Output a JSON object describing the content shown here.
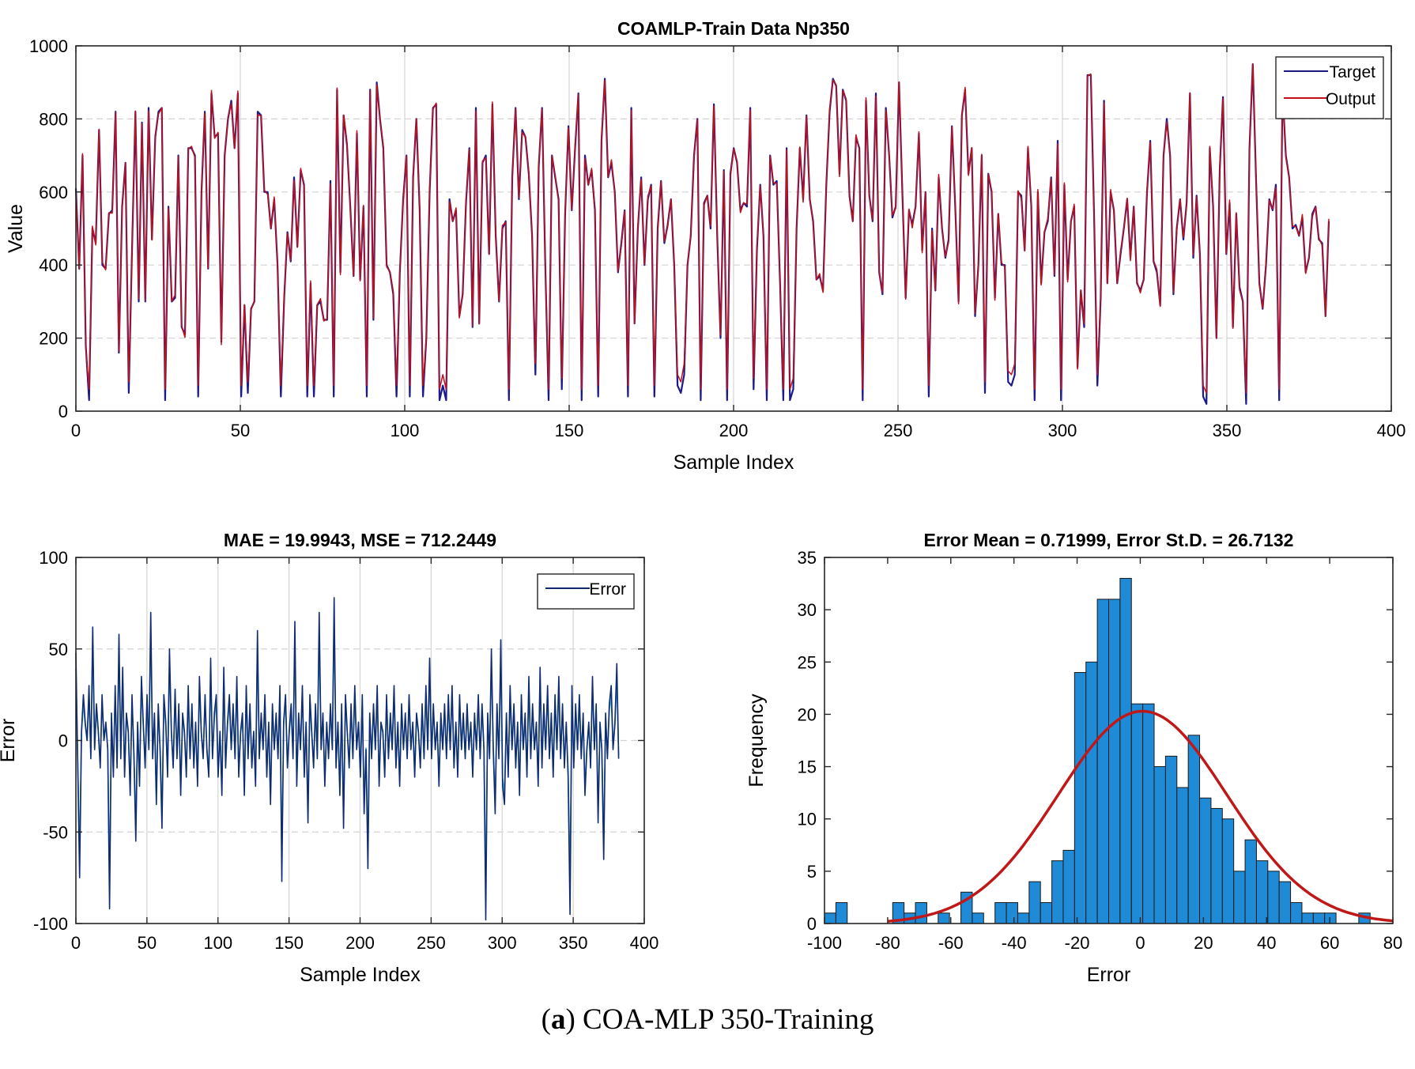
{
  "caption": {
    "label": "a",
    "text": "COA-MLP 350-Training"
  },
  "chart_data": [
    {
      "type": "line",
      "title": "COAMLP-Train Data Np350",
      "xlabel": "Sample Index",
      "ylabel": "Value",
      "xlim": [
        0,
        400
      ],
      "ylim": [
        0,
        1000
      ],
      "xticks": [
        0,
        50,
        100,
        150,
        200,
        250,
        300,
        350,
        400
      ],
      "yticks": [
        0,
        200,
        400,
        600,
        800,
        1000
      ],
      "grid": true,
      "legend_position": "top-right",
      "series": [
        {
          "name": "Target",
          "color": "#1a1a8c"
        },
        {
          "name": "Output",
          "color": "#c0101a"
        }
      ],
      "x_range": [
        0,
        381
      ],
      "values": [
        610,
        390,
        700,
        180,
        30,
        500,
        460,
        770,
        400,
        390,
        540,
        550,
        820,
        160,
        560,
        680,
        50,
        450,
        820,
        300,
        790,
        300,
        830,
        470,
        750,
        820,
        830,
        30,
        560,
        300,
        310,
        700,
        230,
        210,
        720,
        720,
        700,
        40,
        600,
        820,
        390,
        870,
        750,
        760,
        190,
        700,
        800,
        850,
        720,
        870,
        40,
        290,
        50,
        280,
        300,
        820,
        810,
        600,
        600,
        500,
        580,
        400,
        40,
        310,
        490,
        410,
        640,
        450,
        660,
        620,
        40,
        350,
        40,
        290,
        300,
        250,
        250,
        630,
        40,
        880,
        380,
        810,
        730,
        560,
        370,
        760,
        360,
        560,
        40,
        880,
        250,
        900,
        800,
        720,
        400,
        380,
        320,
        40,
        380,
        580,
        700,
        40,
        640,
        800,
        550,
        40,
        200,
        600,
        830,
        840,
        30,
        70,
        30,
        580,
        520,
        550,
        260,
        320,
        570,
        720,
        230,
        830,
        240,
        680,
        700,
        430,
        840,
        480,
        300,
        500,
        520,
        30,
        640,
        830,
        580,
        770,
        750,
        650,
        480,
        100,
        670,
        830,
        400,
        30,
        700,
        640,
        580,
        60,
        540,
        780,
        550,
        720,
        870,
        30,
        700,
        620,
        660,
        550,
        40,
        740,
        910,
        640,
        680,
        600,
        380,
        460,
        550,
        40,
        830,
        240,
        500,
        640,
        400,
        580,
        620,
        40,
        500,
        630,
        460,
        510,
        580,
        400,
        70,
        50,
        100,
        400,
        480,
        700,
        800,
        30,
        570,
        590,
        500,
        840,
        480,
        200,
        660,
        30,
        650,
        720,
        680,
        550,
        570,
        560,
        830,
        60,
        440,
        620,
        480,
        30,
        700,
        620,
        630,
        350,
        30,
        720,
        30,
        60,
        500,
        720,
        580,
        810,
        580,
        520,
        360,
        370,
        330,
        620,
        820,
        910,
        890,
        650,
        880,
        850,
        590,
        520,
        750,
        720,
        30,
        850,
        590,
        520,
        870,
        380,
        320,
        830,
        700,
        530,
        560,
        900,
        600,
        310,
        550,
        510,
        560,
        760,
        440,
        600,
        40,
        500,
        330,
        640,
        500,
        420,
        470,
        780,
        560,
        300,
        810,
        880,
        650,
        720,
        260,
        400,
        700,
        50,
        650,
        600,
        310,
        540,
        400,
        400,
        80,
        70,
        100,
        600,
        590,
        440,
        720,
        560,
        30,
        600,
        350,
        490,
        520,
        640,
        370,
        740,
        30,
        620,
        360,
        520,
        560,
        120,
        330,
        230,
        920,
        920,
        540,
        70,
        310,
        850,
        350,
        600,
        550,
        350,
        430,
        500,
        580,
        420,
        560,
        350,
        330,
        360,
        600,
        740,
        410,
        380,
        290,
        700,
        800,
        700,
        320,
        500,
        580,
        470,
        570,
        870,
        420,
        590,
        430,
        40,
        20,
        720,
        560,
        200,
        660,
        860,
        430,
        570,
        230,
        540,
        340,
        300,
        20,
        720,
        950,
        630,
        350,
        280,
        400,
        580,
        550,
        620,
        30,
        880,
        700,
        640,
        500,
        510,
        480,
        530,
        380,
        420,
        540,
        560,
        470,
        460,
        260,
        520
      ]
    },
    {
      "type": "line",
      "title": "MAE = 19.9943, MSE = 712.2449",
      "xlabel": "Sample Index",
      "ylabel": "Error",
      "xlim": [
        0,
        400
      ],
      "ylim": [
        -100,
        100
      ],
      "xticks": [
        0,
        50,
        100,
        150,
        200,
        250,
        300,
        350,
        400
      ],
      "yticks": [
        -100,
        -50,
        0,
        50,
        100
      ],
      "grid": true,
      "legend_position": "top-right",
      "series": [
        {
          "name": "Error",
          "color": "#0f2d6e"
        }
      ],
      "x_range": [
        0,
        382
      ],
      "values": [
        48,
        -15,
        -75,
        5,
        25,
        10,
        0,
        30,
        -10,
        62,
        -5,
        20,
        5,
        -15,
        25,
        0,
        10,
        -5,
        -92,
        15,
        -20,
        30,
        -15,
        58,
        -10,
        40,
        -20,
        15,
        5,
        -30,
        25,
        -8,
        -55,
        10,
        -25,
        35,
        10,
        -15,
        25,
        -5,
        70,
        -10,
        15,
        -35,
        20,
        -5,
        -48,
        25,
        10,
        -20,
        50,
        5,
        -15,
        28,
        -10,
        20,
        -30,
        15,
        5,
        -20,
        30,
        -10,
        20,
        -15,
        10,
        -25,
        35,
        5,
        -10,
        25,
        -5,
        -20,
        45,
        -10,
        15,
        25,
        -20,
        5,
        -30,
        40,
        -15,
        10,
        25,
        -5,
        20,
        -10,
        35,
        -20,
        5,
        15,
        -30,
        30,
        -10,
        20,
        -15,
        5,
        -25,
        60,
        -10,
        15,
        -5,
        25,
        -20,
        10,
        -35,
        20,
        -5,
        15,
        -10,
        30,
        -77,
        10,
        25,
        -15,
        5,
        20,
        -10,
        65,
        -25,
        15,
        -5,
        30,
        -20,
        10,
        -45,
        25,
        5,
        -15,
        20,
        -10,
        70,
        -5,
        15,
        -25,
        10,
        -10,
        20,
        -5,
        78,
        -15,
        10,
        -30,
        20,
        -48,
        25,
        5,
        -15,
        20,
        -10,
        30,
        -5,
        10,
        -20,
        25,
        -40,
        -5,
        -70,
        15,
        -10,
        20,
        -5,
        30,
        -25,
        10,
        5,
        -20,
        25,
        -10,
        15,
        -5,
        30,
        -15,
        10,
        -25,
        20,
        -5,
        15,
        -10,
        25,
        -5,
        10,
        -20,
        15,
        5,
        -15,
        20,
        -10,
        30,
        -5,
        45,
        -10,
        20,
        -5,
        10,
        -25,
        15,
        -5,
        20,
        -10,
        25,
        -5,
        30,
        -15,
        10,
        -20,
        25,
        -5,
        15,
        -10,
        20,
        -5,
        10,
        -20,
        15,
        -5,
        25,
        -10,
        20,
        -5,
        -98,
        15,
        -10,
        50,
        -5,
        -40,
        20,
        -10,
        55,
        -25,
        -35,
        15,
        -20,
        30,
        -5,
        20,
        -15,
        10,
        -30,
        25,
        -5,
        15,
        -20,
        35,
        -10,
        20,
        -5,
        10,
        -25,
        40,
        -15,
        20,
        -5,
        30,
        -10,
        15,
        -20,
        25,
        -5,
        35,
        -10,
        20,
        -15,
        10,
        -20,
        -95,
        30,
        -15,
        20,
        -5,
        25,
        -10,
        15,
        -30,
        -5,
        10,
        -15,
        35,
        -5,
        20,
        -45,
        10,
        -5,
        -65,
        15,
        -10,
        20,
        30,
        -5,
        10,
        42,
        -10
      ]
    },
    {
      "type": "bar",
      "subtype": "histogram",
      "title": "Error Mean = 0.71999, Error St.D. = 26.7132",
      "xlabel": "Error",
      "ylabel": "Frequency",
      "xlim": [
        -100,
        80
      ],
      "ylim": [
        0,
        35
      ],
      "xticks": [
        -100,
        -80,
        -60,
        -40,
        -20,
        0,
        20,
        40,
        60,
        80
      ],
      "yticks": [
        0,
        5,
        10,
        15,
        20,
        25,
        30,
        35
      ],
      "grid": false,
      "bin_start": -100,
      "bin_width": 3.6,
      "bar_color": "#1f8ad6",
      "counts": [
        1,
        2,
        0,
        0,
        0,
        0,
        2,
        1,
        2,
        0,
        1,
        0,
        3,
        1,
        0,
        2,
        2,
        1,
        4,
        2,
        6,
        7,
        24,
        25,
        31,
        31,
        33,
        21,
        21,
        15,
        16,
        13,
        18,
        12,
        11,
        10,
        5,
        8,
        6,
        5,
        4,
        2,
        1,
        1,
        1,
        0,
        0,
        1
      ],
      "fit_curve": {
        "type": "normal",
        "mean": 0.71999,
        "std": 26.7132,
        "peak": 20.3,
        "color": "#c01818"
      }
    }
  ]
}
